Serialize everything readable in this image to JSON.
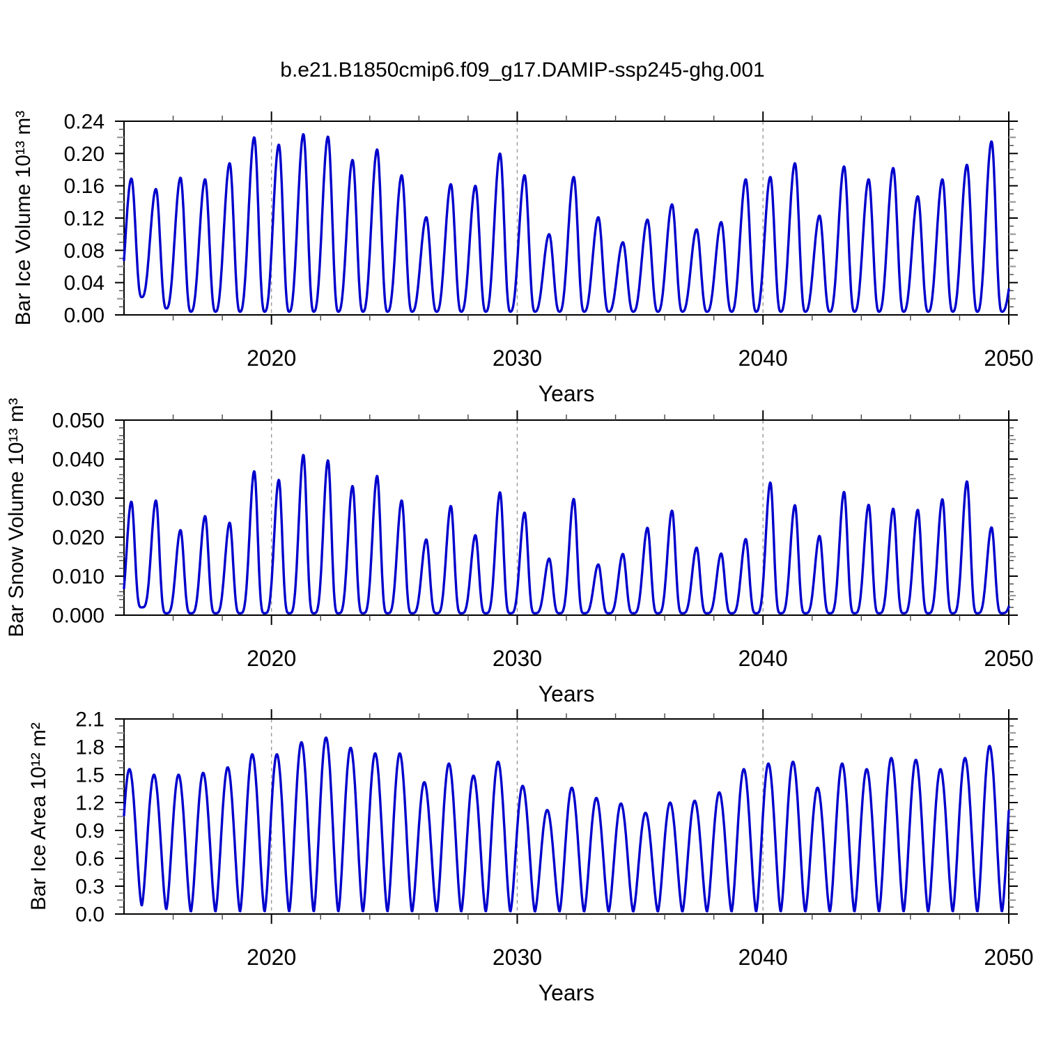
{
  "figure": {
    "title": "b.e21.B1850cmip6.f09_g17.DAMIP-ssp245-ghg.001",
    "line_color": "#0000cc",
    "grid_color": "#999999",
    "tick_minor_color": "#444444",
    "tick_half_color": "#9a9a9a"
  },
  "chart_data": [
    {
      "type": "line",
      "id": "ice-volume",
      "y_title": "Bar Ice Volume 10¹³ m³",
      "x_title": "Years",
      "xlim": [
        2014,
        2050
      ],
      "ylim": [
        0,
        0.24
      ],
      "x_tick_values": [
        2020,
        2030,
        2040,
        2050
      ],
      "x_tick_labels": [
        "2020",
        "2030",
        "2040",
        "2050"
      ],
      "x_minor_step": 2,
      "dashed_gridlines": [
        2020,
        2030,
        2040
      ],
      "y_tick_values": [
        0,
        0.04,
        0.08,
        0.12,
        0.16,
        0.2,
        0.24
      ],
      "y_tick_labels": [
        "0.00",
        "0.04",
        "0.08",
        "0.12",
        "0.16",
        "0.20",
        "0.24"
      ],
      "y_minor_step": 0.01,
      "y_half_step": 0.02,
      "seasonal_cycle": {
        "years": [
          2014,
          2015,
          2016,
          2017,
          2018,
          2019,
          2020,
          2021,
          2022,
          2023,
          2024,
          2025,
          2026,
          2027,
          2028,
          2029,
          2030,
          2031,
          2032,
          2033,
          2034,
          2035,
          2036,
          2037,
          2038,
          2039,
          2040,
          2041,
          2042,
          2043,
          2044,
          2045,
          2046,
          2047,
          2048,
          2049
        ],
        "annual_max": [
          0.169,
          0.156,
          0.17,
          0.168,
          0.188,
          0.22,
          0.211,
          0.224,
          0.221,
          0.192,
          0.205,
          0.173,
          0.121,
          0.162,
          0.16,
          0.2,
          0.173,
          0.1,
          0.171,
          0.121,
          0.09,
          0.118,
          0.137,
          0.106,
          0.115,
          0.168,
          0.171,
          0.188,
          0.123,
          0.184,
          0.168,
          0.182,
          0.147,
          0.168,
          0.186,
          0.215
        ],
        "annual_min": [
          0.022,
          0.008,
          0.004,
          0.004,
          0.004,
          0.004,
          0.004,
          0.004,
          0.004,
          0.004,
          0.004,
          0.004,
          0.004,
          0.004,
          0.004,
          0.004,
          0.004,
          0.004,
          0.004,
          0.004,
          0.004,
          0.004,
          0.004,
          0.004,
          0.004,
          0.004,
          0.004,
          0.004,
          0.004,
          0.004,
          0.004,
          0.004,
          0.004,
          0.004,
          0.004,
          0.004
        ],
        "start_min": 0.01,
        "end_peak": 0.08,
        "peak_phase": 0.3,
        "min_phase": 0.72,
        "shape_power": 1.35
      }
    },
    {
      "type": "line",
      "id": "snow-volume",
      "y_title": "Bar Snow Volume 10¹³ m³",
      "x_title": "Years",
      "xlim": [
        2014,
        2050
      ],
      "ylim": [
        0,
        0.05
      ],
      "x_tick_values": [
        2020,
        2030,
        2040,
        2050
      ],
      "x_tick_labels": [
        "2020",
        "2030",
        "2040",
        "2050"
      ],
      "x_minor_step": 2,
      "dashed_gridlines": [
        2020,
        2030,
        2040
      ],
      "y_tick_values": [
        0,
        0.01,
        0.02,
        0.03,
        0.04,
        0.05
      ],
      "y_tick_labels": [
        "0.000",
        "0.010",
        "0.020",
        "0.030",
        "0.040",
        "0.050"
      ],
      "y_minor_step": 0.002,
      "y_half_step": 0.005,
      "seasonal_cycle": {
        "years": [
          2014,
          2015,
          2016,
          2017,
          2018,
          2019,
          2020,
          2021,
          2022,
          2023,
          2024,
          2025,
          2026,
          2027,
          2028,
          2029,
          2030,
          2031,
          2032,
          2033,
          2034,
          2035,
          2036,
          2037,
          2038,
          2039,
          2040,
          2041,
          2042,
          2043,
          2044,
          2045,
          2046,
          2047,
          2048,
          2049
        ],
        "annual_max": [
          0.0291,
          0.0294,
          0.0218,
          0.0254,
          0.0237,
          0.0369,
          0.0347,
          0.0411,
          0.0397,
          0.0331,
          0.0357,
          0.0294,
          0.0194,
          0.028,
          0.0205,
          0.0315,
          0.0263,
          0.0145,
          0.0298,
          0.013,
          0.0157,
          0.0224,
          0.0268,
          0.0173,
          0.0158,
          0.0195,
          0.034,
          0.0282,
          0.0203,
          0.0316,
          0.0283,
          0.0273,
          0.027,
          0.0297,
          0.0343,
          0.0225
        ],
        "annual_min": [
          0.002,
          0.0005,
          0.0005,
          0.0005,
          0.0005,
          0.0005,
          0.0005,
          0.0005,
          0.0005,
          0.0005,
          0.0005,
          0.0005,
          0.0005,
          0.0005,
          0.0005,
          0.0005,
          0.0005,
          0.0005,
          0.0005,
          0.0005,
          0.0005,
          0.0005,
          0.0005,
          0.0005,
          0.0005,
          0.0005,
          0.0005,
          0.0005,
          0.0005,
          0.0005,
          0.0005,
          0.0005,
          0.0005,
          0.0005,
          0.0005,
          0.0005
        ],
        "start_min": 0.0005,
        "end_peak": 0.008,
        "peak_phase": 0.3,
        "min_phase": 0.72,
        "shape_power": 2.0
      }
    },
    {
      "type": "line",
      "id": "ice-area",
      "y_title": "Bar Ice Area 10¹² m²",
      "x_title": "Years",
      "xlim": [
        2014,
        2050
      ],
      "ylim": [
        0,
        2.1
      ],
      "x_tick_values": [
        2020,
        2030,
        2040,
        2050
      ],
      "x_tick_labels": [
        "2020",
        "2030",
        "2040",
        "2050"
      ],
      "x_minor_step": 2,
      "dashed_gridlines": [
        2020,
        2030,
        2040
      ],
      "y_tick_values": [
        0,
        0.3,
        0.6,
        0.9,
        1.2,
        1.5,
        1.8,
        2.1
      ],
      "y_tick_labels": [
        "0.0",
        "0.3",
        "0.6",
        "0.9",
        "1.2",
        "1.5",
        "1.8",
        "2.1"
      ],
      "y_minor_step": 0.075,
      "y_half_step": 0.15,
      "seasonal_cycle": {
        "years": [
          2014,
          2015,
          2016,
          2017,
          2018,
          2019,
          2020,
          2021,
          2022,
          2023,
          2024,
          2025,
          2026,
          2027,
          2028,
          2029,
          2030,
          2031,
          2032,
          2033,
          2034,
          2035,
          2036,
          2037,
          2038,
          2039,
          2040,
          2041,
          2042,
          2043,
          2044,
          2045,
          2046,
          2047,
          2048,
          2049
        ],
        "annual_max": [
          1.56,
          1.5,
          1.5,
          1.52,
          1.58,
          1.72,
          1.72,
          1.85,
          1.9,
          1.79,
          1.73,
          1.73,
          1.42,
          1.62,
          1.49,
          1.64,
          1.38,
          1.12,
          1.36,
          1.25,
          1.19,
          1.09,
          1.2,
          1.22,
          1.31,
          1.56,
          1.62,
          1.64,
          1.36,
          1.62,
          1.56,
          1.68,
          1.66,
          1.56,
          1.68,
          1.81
        ],
        "annual_min": [
          0.09,
          0.05,
          0.025,
          0.025,
          0.025,
          0.025,
          0.025,
          0.025,
          0.025,
          0.025,
          0.025,
          0.025,
          0.025,
          0.025,
          0.025,
          0.025,
          0.025,
          0.025,
          0.025,
          0.025,
          0.025,
          0.025,
          0.025,
          0.025,
          0.025,
          0.025,
          0.025,
          0.025,
          0.025,
          0.025,
          0.025,
          0.025,
          0.025,
          0.025,
          0.025,
          0.025
        ],
        "start_min": 0.1,
        "end_peak": 1.67,
        "peak_phase": 0.22,
        "min_phase": 0.72,
        "shape_power": 0.8
      }
    }
  ]
}
